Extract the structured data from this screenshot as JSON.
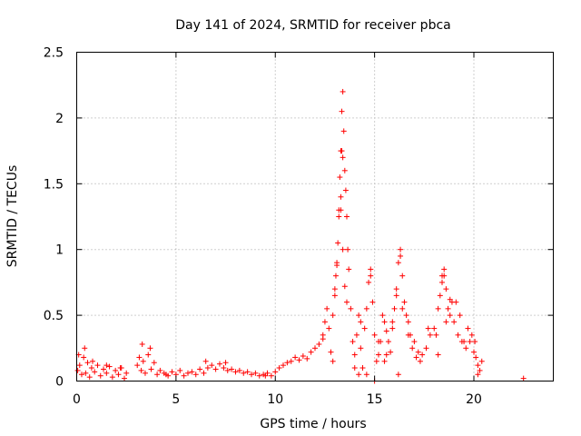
{
  "colors": {
    "series": "#ff0000",
    "axis": "#000000",
    "grid": "#a0a0a0",
    "background": "#ffffff"
  },
  "chart_data": {
    "type": "scatter",
    "title": "Day 141 of 2024, SRMTID for receiver pbca",
    "xlabel": "GPS time / hours",
    "ylabel": "SRMTID / TECUs",
    "xlim": [
      0,
      24
    ],
    "ylim": [
      0,
      2.5
    ],
    "grid": true,
    "marker": "plus",
    "x_ticks": [
      0,
      5,
      10,
      15,
      20
    ],
    "x_tick_labels": [
      "0",
      "5",
      "10",
      "15",
      "20"
    ],
    "y_ticks": [
      0,
      0.5,
      1,
      1.5,
      2,
      2.5
    ],
    "y_tick_labels": [
      "0",
      "0.5",
      "1",
      "1.5",
      "2",
      "2.5"
    ],
    "series": [
      {
        "name": "SRMTID",
        "x": [
          0.05,
          0.15,
          0.25,
          0.35,
          0.45,
          0.55,
          0.65,
          0.75,
          0.9,
          1.05,
          1.2,
          1.35,
          1.5,
          1.65,
          1.8,
          1.95,
          2.1,
          2.25,
          2.4,
          2.5,
          3.05,
          3.15,
          3.25,
          3.35,
          3.45,
          3.6,
          3.75,
          3.9,
          4.05,
          4.2,
          4.4,
          4.6,
          4.8,
          5.0,
          5.2,
          5.4,
          5.6,
          5.8,
          6.0,
          6.2,
          6.4,
          6.6,
          6.8,
          7.0,
          7.2,
          7.4,
          7.6,
          7.8,
          8.0,
          8.2,
          8.4,
          8.6,
          8.8,
          9.0,
          9.2,
          9.4,
          9.6,
          9.8,
          10.0,
          10.2,
          10.4,
          10.6,
          10.8,
          11.0,
          11.2,
          11.4,
          11.6,
          11.8,
          12.0,
          12.2,
          12.4,
          12.5,
          12.6,
          12.7,
          12.8,
          12.9,
          13.0,
          13.05,
          13.1,
          13.15,
          13.2,
          13.25,
          13.3,
          13.35,
          13.4,
          13.45,
          13.5,
          13.55,
          13.6,
          13.65,
          13.7,
          13.8,
          13.9,
          14.0,
          14.1,
          14.2,
          14.3,
          14.4,
          14.5,
          14.6,
          14.7,
          14.8,
          14.9,
          15.0,
          15.1,
          15.2,
          15.3,
          15.4,
          15.5,
          15.6,
          15.7,
          15.8,
          15.9,
          16.0,
          16.1,
          16.2,
          16.3,
          16.4,
          16.5,
          16.6,
          16.7,
          16.8,
          16.9,
          17.0,
          17.2,
          17.4,
          17.6,
          17.8,
          18.0,
          18.2,
          18.3,
          18.4,
          18.5,
          18.6,
          18.7,
          18.8,
          18.9,
          19.0,
          19.2,
          19.4,
          19.6,
          19.8,
          20.0,
          20.1,
          20.2,
          20.3,
          20.4,
          22.5,
          0.1,
          0.4,
          0.8,
          1.5,
          2.2,
          3.3,
          3.7,
          4.5,
          6.5,
          7.5,
          9.5,
          12.4,
          13.3,
          13.35,
          13.4,
          14.2,
          15.0,
          15.5,
          16.2,
          16.3,
          17.1,
          18.1,
          18.5,
          19.1,
          20.2,
          12.9,
          13.0,
          13.1,
          13.2,
          13.3,
          13.4,
          13.5,
          13.6,
          14.0,
          14.3,
          14.6,
          14.8,
          15.2,
          15.6,
          15.9,
          16.1,
          16.4,
          16.7,
          17.3,
          17.7,
          18.2,
          18.4,
          18.6,
          18.8,
          19.3,
          19.5,
          19.7,
          19.9,
          20.05
        ],
        "y": [
          0.08,
          0.12,
          0.05,
          0.18,
          0.06,
          0.14,
          0.03,
          0.1,
          0.07,
          0.12,
          0.04,
          0.09,
          0.06,
          0.11,
          0.03,
          0.08,
          0.05,
          0.1,
          0.02,
          0.06,
          0.12,
          0.18,
          0.08,
          0.15,
          0.06,
          0.2,
          0.09,
          0.14,
          0.05,
          0.08,
          0.06,
          0.04,
          0.07,
          0.05,
          0.08,
          0.04,
          0.06,
          0.07,
          0.05,
          0.09,
          0.06,
          0.1,
          0.12,
          0.09,
          0.13,
          0.1,
          0.08,
          0.09,
          0.07,
          0.08,
          0.06,
          0.07,
          0.05,
          0.06,
          0.04,
          0.05,
          0.06,
          0.04,
          0.07,
          0.1,
          0.12,
          0.14,
          0.15,
          0.18,
          0.16,
          0.19,
          0.17,
          0.22,
          0.25,
          0.28,
          0.32,
          0.45,
          0.55,
          0.4,
          0.22,
          0.5,
          0.65,
          0.8,
          0.9,
          1.05,
          1.3,
          1.55,
          1.75,
          2.05,
          2.2,
          1.9,
          1.6,
          1.45,
          1.25,
          1.0,
          0.85,
          0.55,
          0.3,
          0.2,
          0.35,
          0.5,
          0.25,
          0.1,
          0.4,
          0.55,
          0.75,
          0.85,
          0.6,
          0.35,
          0.15,
          0.2,
          0.3,
          0.5,
          0.45,
          0.38,
          0.3,
          0.22,
          0.4,
          0.55,
          0.7,
          0.9,
          1.0,
          0.8,
          0.6,
          0.5,
          0.45,
          0.35,
          0.25,
          0.3,
          0.22,
          0.2,
          0.25,
          0.35,
          0.4,
          0.55,
          0.65,
          0.8,
          0.85,
          0.7,
          0.55,
          0.5,
          0.6,
          0.45,
          0.35,
          0.3,
          0.25,
          0.3,
          0.22,
          0.18,
          0.12,
          0.08,
          0.15,
          0.02,
          0.2,
          0.25,
          0.15,
          0.12,
          0.1,
          0.28,
          0.25,
          0.05,
          0.15,
          0.14,
          0.04,
          0.35,
          1.3,
          1.75,
          1.7,
          0.05,
          0.0,
          0.15,
          0.05,
          0.95,
          0.18,
          0.35,
          0.8,
          0.6,
          0.05,
          0.15,
          0.7,
          0.88,
          1.25,
          1.4,
          1.0,
          0.72,
          0.6,
          0.1,
          0.45,
          0.05,
          0.8,
          0.3,
          0.2,
          0.45,
          0.65,
          0.55,
          0.35,
          0.15,
          0.4,
          0.2,
          0.75,
          0.45,
          0.62,
          0.5,
          0.3,
          0.4,
          0.35,
          0.3
        ]
      }
    ]
  }
}
